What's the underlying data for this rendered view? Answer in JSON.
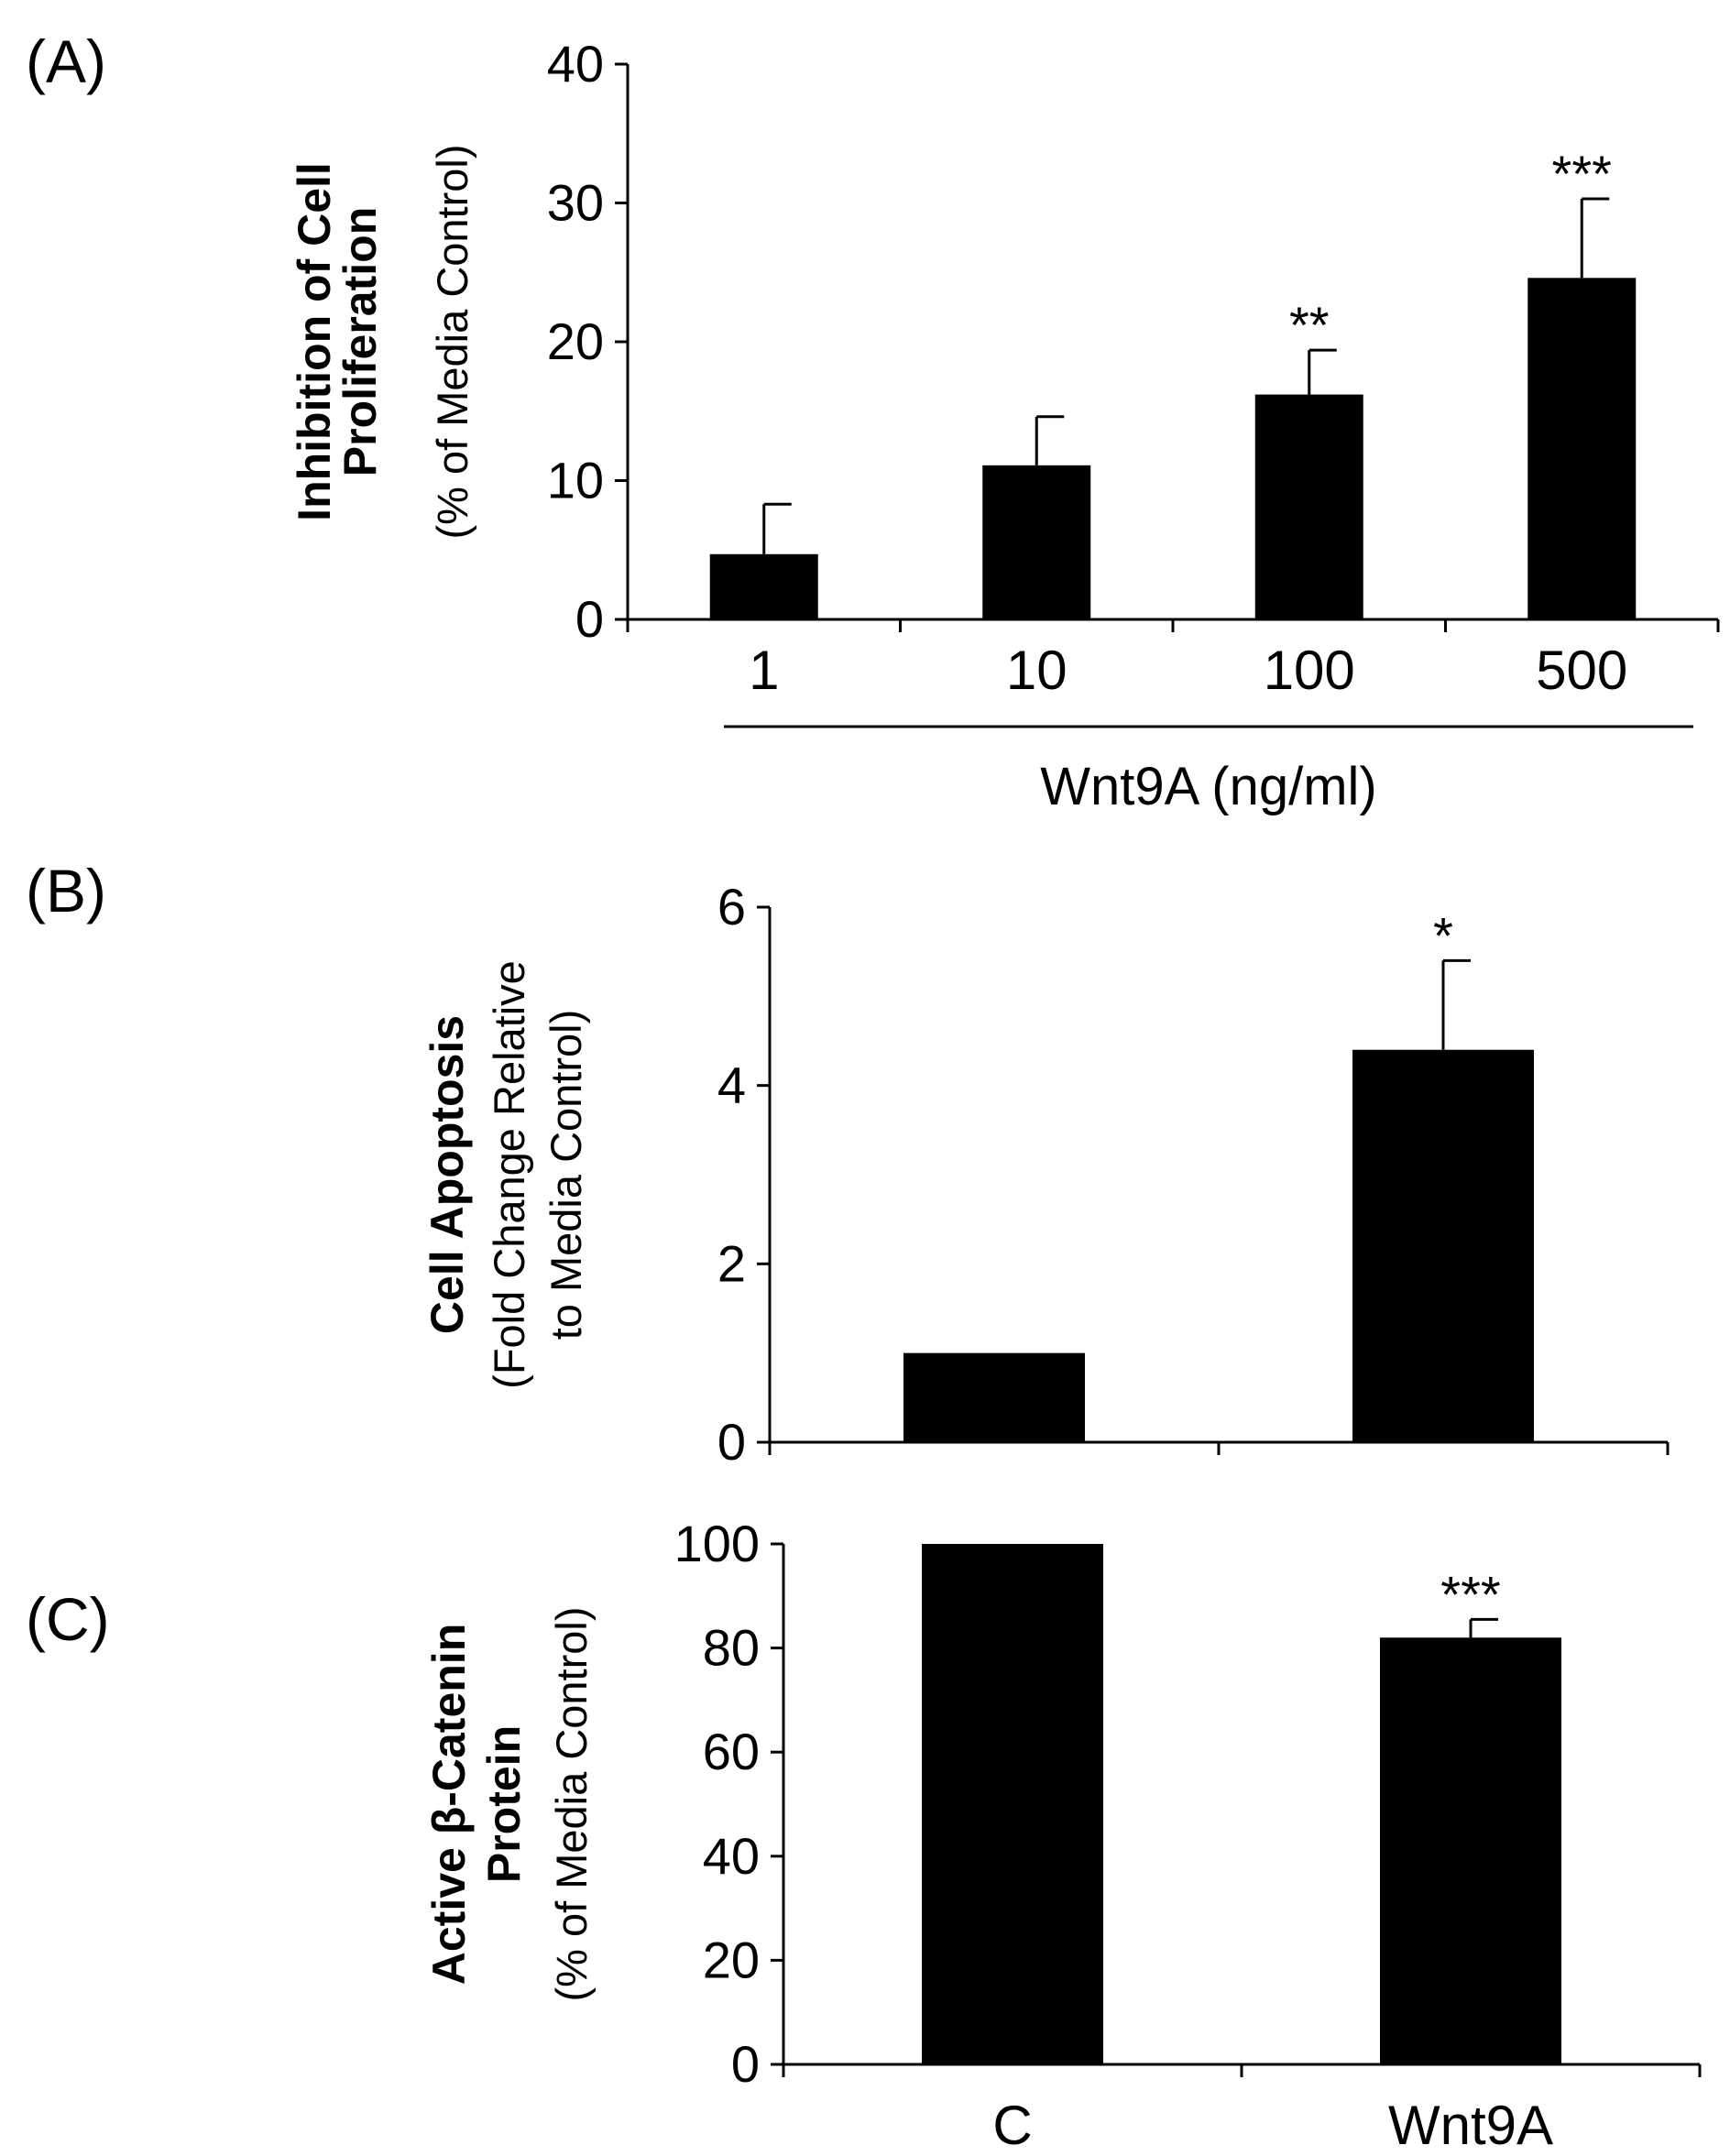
{
  "chart_data": [
    {
      "panel_label": "(A)",
      "type": "bar",
      "categories": [
        "1",
        "10",
        "100",
        "500"
      ],
      "values": [
        4.7,
        11.1,
        16.2,
        24.6
      ],
      "errors": [
        3.6,
        3.5,
        3.2,
        5.7
      ],
      "significance": [
        "",
        "",
        "**",
        "***"
      ],
      "ylabel": [
        "Inhibition of Cell",
        "Proliferation"
      ],
      "ylabel_sub": [
        "(% of Media Control)"
      ],
      "xlabel": "Wnt9A (ng/ml)",
      "ylim": [
        0,
        40
      ],
      "yticks": [
        "0",
        "10",
        "20",
        "30",
        "40"
      ],
      "grid": false,
      "color": "#000000"
    },
    {
      "panel_label": "(B)",
      "type": "bar",
      "categories": [
        "C",
        "Wnt9A"
      ],
      "values": [
        1.0,
        4.4
      ],
      "errors": [
        0,
        1.0
      ],
      "significance": [
        "",
        "*"
      ],
      "ylabel": [
        "Cell Apoptosis"
      ],
      "ylabel_sub": [
        "(Fold Change Relative",
        "to Media Control)"
      ],
      "ylim": [
        0,
        6
      ],
      "yticks": [
        "0",
        "2",
        "4",
        "6"
      ],
      "grid": false,
      "color": "#000000"
    },
    {
      "panel_label": "(C)",
      "type": "bar",
      "categories": [
        "C",
        "Wnt9A"
      ],
      "values": [
        100,
        82
      ],
      "errors": [
        0,
        3.5
      ],
      "significance": [
        "",
        "***"
      ],
      "ylabel": [
        "Active β-Catenin",
        "Protein"
      ],
      "ylabel_sub": [
        "(% of Media Control)"
      ],
      "ylim": [
        0,
        100
      ],
      "yticks": [
        "0",
        "20",
        "40",
        "60",
        "80",
        "100"
      ],
      "grid": false,
      "color": "#000000"
    }
  ]
}
